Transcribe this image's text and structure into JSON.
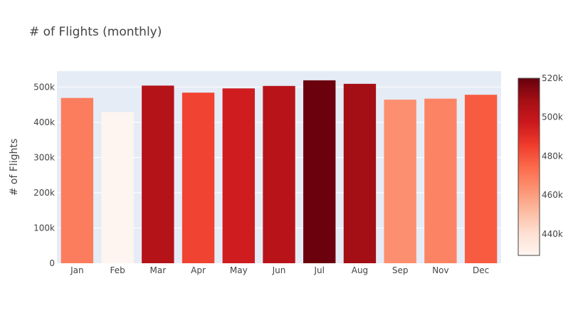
{
  "chart_data": {
    "type": "bar",
    "title": "# of Flights (monthly)",
    "xlabel": "",
    "ylabel": "# of Flights",
    "categories": [
      "Jan",
      "Feb",
      "Mar",
      "Apr",
      "May",
      "Jun",
      "Jul",
      "Aug",
      "Sep",
      "Nov",
      "Dec"
    ],
    "values": [
      469000,
      429000,
      504000,
      484000,
      496000,
      503000,
      519000,
      509000,
      464000,
      467000,
      478000
    ],
    "ylim": [
      0,
      545000
    ],
    "yticks": [
      0,
      100000,
      200000,
      300000,
      400000,
      500000
    ],
    "ytick_labels": [
      "0",
      "100k",
      "200k",
      "300k",
      "400k",
      "500k"
    ],
    "grid": true,
    "plot_background": "#e5ecf6",
    "colorscale": {
      "name": "Reds",
      "range": [
        429000,
        520000
      ],
      "stops": [
        "#fff5f0",
        "#fee0d2",
        "#fcbba1",
        "#fc9272",
        "#fb6a4a",
        "#ef3b2c",
        "#cb181d",
        "#a50f15",
        "#67000d"
      ],
      "ticks": [
        440000,
        460000,
        480000,
        500000,
        520000
      ],
      "tick_labels": [
        "440k",
        "460k",
        "480k",
        "500k",
        "520k"
      ],
      "position": "right"
    },
    "legend": "none"
  }
}
